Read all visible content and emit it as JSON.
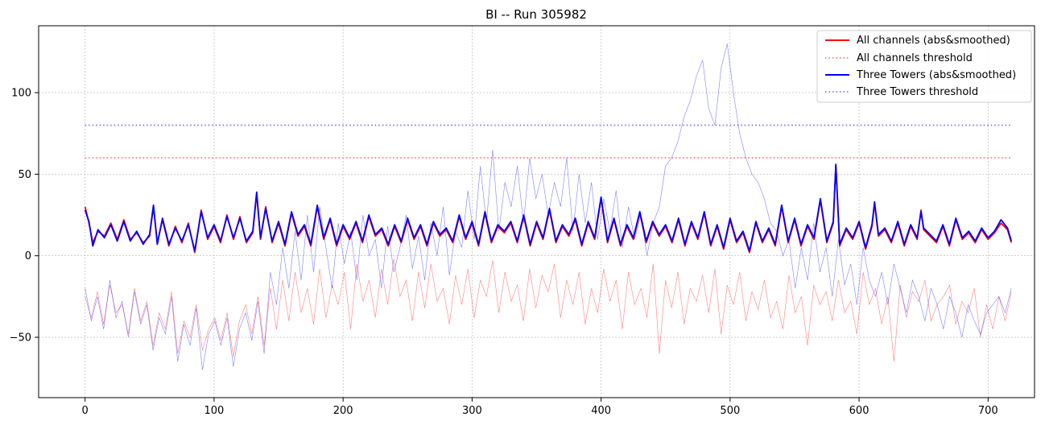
{
  "chart_data": {
    "type": "line",
    "title": "BI -- Run 305982",
    "xlabel": "",
    "ylabel": "",
    "xlim": [
      -36,
      736
    ],
    "ylim": [
      -87,
      141
    ],
    "xticks": [
      0,
      100,
      200,
      300,
      400,
      500,
      600,
      700
    ],
    "yticks": [
      -50,
      0,
      50,
      100
    ],
    "grid": true,
    "legend_position": "top-right",
    "legend": [
      {
        "label": "All channels (abs&smoothed)",
        "color": "#ff0000",
        "style": "solid"
      },
      {
        "label": "All channels threshold",
        "color": "#ff6666",
        "style": "dotted"
      },
      {
        "label": "Three Towers (abs&smoothed)",
        "color": "#0000ff",
        "style": "solid"
      },
      {
        "label": "Three Towers threshold",
        "color": "#6666ff",
        "style": "dotted"
      }
    ],
    "series": [
      {
        "name": "All channels (abs&smoothed)",
        "color": "#ff0000",
        "x": [
          0,
          3,
          6,
          10,
          15,
          20,
          25,
          30,
          35,
          40,
          45,
          50,
          53,
          56,
          60,
          65,
          70,
          75,
          80,
          85,
          90,
          95,
          100,
          105,
          110,
          115,
          120,
          125,
          130,
          133,
          136,
          140,
          145,
          150,
          155,
          160,
          165,
          170,
          175,
          180,
          185,
          190,
          195,
          200,
          205,
          210,
          215,
          220,
          225,
          230,
          235,
          240,
          245,
          250,
          255,
          260,
          265,
          270,
          275,
          280,
          285,
          290,
          295,
          300,
          305,
          310,
          315,
          320,
          325,
          330,
          335,
          340,
          345,
          350,
          355,
          360,
          365,
          370,
          375,
          380,
          385,
          390,
          395,
          400,
          405,
          410,
          415,
          420,
          425,
          430,
          435,
          440,
          445,
          450,
          455,
          460,
          465,
          470,
          475,
          480,
          485,
          490,
          495,
          500,
          505,
          510,
          515,
          520,
          525,
          530,
          535,
          540,
          545,
          550,
          555,
          560,
          565,
          570,
          575,
          580,
          582,
          585,
          590,
          595,
          600,
          605,
          610,
          612,
          615,
          620,
          625,
          630,
          635,
          640,
          645,
          648,
          650,
          655,
          660,
          665,
          670,
          675,
          680,
          685,
          690,
          695,
          700,
          705,
          710,
          715,
          718
        ],
        "values": [
          30,
          20,
          8,
          15,
          12,
          20,
          10,
          22,
          10,
          14,
          8,
          12,
          30,
          8,
          22,
          6,
          18,
          8,
          20,
          2,
          28,
          10,
          18,
          8,
          25,
          10,
          24,
          8,
          14,
          38,
          10,
          30,
          8,
          20,
          6,
          26,
          12,
          18,
          6,
          30,
          10,
          22,
          6,
          18,
          10,
          20,
          8,
          24,
          12,
          16,
          6,
          18,
          8,
          22,
          10,
          18,
          6,
          20,
          12,
          16,
          8,
          24,
          10,
          20,
          6,
          26,
          8,
          18,
          14,
          20,
          8,
          24,
          6,
          20,
          10,
          28,
          8,
          18,
          12,
          22,
          6,
          20,
          10,
          35,
          8,
          22,
          6,
          18,
          10,
          26,
          8,
          20,
          12,
          18,
          8,
          22,
          6,
          20,
          10,
          26,
          6,
          18,
          4,
          22,
          8,
          14,
          2,
          20,
          8,
          16,
          6,
          30,
          8,
          22,
          6,
          18,
          10,
          34,
          8,
          20,
          55,
          6,
          16,
          10,
          20,
          4,
          18,
          32,
          12,
          16,
          8,
          20,
          6,
          18,
          10,
          28,
          16,
          12,
          8,
          18,
          6,
          22,
          10,
          14,
          8,
          16,
          10,
          14,
          20,
          16,
          8
        ]
      },
      {
        "name": "All channels threshold",
        "color": "#ff6666",
        "x": [
          0,
          718
        ],
        "values": [
          60,
          60
        ]
      },
      {
        "name": "Three Towers (abs&smoothed)",
        "color": "#0000ff",
        "x": [
          0,
          3,
          6,
          10,
          15,
          20,
          25,
          30,
          35,
          40,
          45,
          50,
          53,
          56,
          60,
          65,
          70,
          75,
          80,
          85,
          90,
          95,
          100,
          105,
          110,
          115,
          120,
          125,
          130,
          133,
          136,
          140,
          145,
          150,
          155,
          160,
          165,
          170,
          175,
          180,
          185,
          190,
          195,
          200,
          205,
          210,
          215,
          220,
          225,
          230,
          235,
          240,
          245,
          250,
          255,
          260,
          265,
          270,
          275,
          280,
          285,
          290,
          295,
          300,
          305,
          310,
          315,
          320,
          325,
          330,
          335,
          340,
          345,
          350,
          355,
          360,
          365,
          370,
          375,
          380,
          385,
          390,
          395,
          400,
          405,
          410,
          415,
          420,
          425,
          430,
          435,
          440,
          445,
          450,
          455,
          460,
          465,
          470,
          475,
          480,
          485,
          490,
          495,
          500,
          505,
          510,
          515,
          520,
          525,
          530,
          535,
          540,
          545,
          550,
          555,
          560,
          565,
          570,
          575,
          580,
          582,
          585,
          590,
          595,
          600,
          605,
          610,
          612,
          615,
          620,
          625,
          630,
          635,
          640,
          645,
          648,
          650,
          655,
          660,
          665,
          670,
          675,
          680,
          685,
          690,
          695,
          700,
          705,
          710,
          715,
          718
        ],
        "values": [
          28,
          21,
          6,
          16,
          11,
          19,
          9,
          21,
          9,
          15,
          7,
          13,
          31,
          7,
          23,
          7,
          17,
          9,
          19,
          3,
          27,
          11,
          19,
          9,
          24,
          11,
          23,
          9,
          15,
          39,
          11,
          29,
          9,
          21,
          7,
          27,
          13,
          19,
          7,
          31,
          11,
          23,
          7,
          19,
          11,
          21,
          9,
          25,
          13,
          17,
          7,
          19,
          9,
          23,
          11,
          19,
          7,
          21,
          13,
          17,
          9,
          25,
          11,
          21,
          7,
          27,
          9,
          19,
          15,
          21,
          9,
          25,
          7,
          21,
          11,
          29,
          9,
          19,
          13,
          23,
          7,
          21,
          11,
          36,
          9,
          23,
          7,
          19,
          11,
          27,
          9,
          21,
          13,
          19,
          9,
          23,
          7,
          21,
          11,
          27,
          7,
          19,
          5,
          23,
          9,
          15,
          3,
          21,
          9,
          17,
          7,
          31,
          9,
          23,
          7,
          19,
          11,
          35,
          9,
          21,
          56,
          7,
          17,
          11,
          21,
          5,
          19,
          33,
          13,
          17,
          9,
          21,
          7,
          19,
          11,
          27,
          17,
          13,
          9,
          19,
          7,
          23,
          11,
          15,
          9,
          17,
          11,
          15,
          22,
          17,
          9
        ]
      },
      {
        "name": "Three Towers threshold",
        "color": "#6666ff",
        "x": [
          0,
          718
        ],
        "values": [
          80,
          80
        ]
      }
    ],
    "background_series": [
      {
        "name": "All channels (raw)",
        "color": "#ff0000",
        "values": [
          -25,
          -38,
          -22,
          -42,
          -18,
          -35,
          -30,
          -48,
          -20,
          -40,
          -28,
          -55,
          -35,
          -45,
          -22,
          -60,
          -40,
          -50,
          -30,
          -58,
          -45,
          -38,
          -52,
          -35,
          -62,
          -40,
          -30,
          -48,
          -25,
          -55,
          -20,
          -45,
          -15,
          -40,
          -10,
          -35,
          -20,
          -42,
          -8,
          -38,
          -18,
          -30,
          -10,
          -45,
          -5,
          -28,
          -15,
          -38,
          -8,
          -30,
          -2,
          -25,
          -15,
          -40,
          -10,
          -32,
          -5,
          -28,
          -20,
          -42,
          -12,
          -30,
          -8,
          -38,
          -15,
          -25,
          -3,
          -35,
          -10,
          -28,
          -18,
          -40,
          -8,
          -32,
          -12,
          -22,
          -5,
          -38,
          -15,
          -30,
          -10,
          -42,
          -20,
          -35,
          -8,
          -28,
          -15,
          -45,
          -10,
          -30,
          -20,
          -38,
          -5,
          -60,
          -15,
          -32,
          -10,
          -42,
          -20,
          -28,
          -12,
          -35,
          -8,
          -48,
          -18,
          -30,
          -10,
          -40,
          -22,
          -33,
          -15,
          -38,
          -28,
          -45,
          -12,
          -35,
          -25,
          -55,
          -18,
          -30,
          -22,
          -40,
          -15,
          -35,
          -28,
          -48,
          -10,
          -30,
          -20,
          -42,
          -25,
          -65,
          -18,
          -38,
          -22,
          -28,
          -15,
          -40,
          -30,
          -25,
          -18,
          -42,
          -28,
          -35,
          -20,
          -50,
          -30,
          -45,
          -25,
          -40,
          -22
        ]
      },
      {
        "name": "Three Towers (raw)",
        "color": "#0000ff",
        "values": [
          -20,
          -40,
          -25,
          -45,
          -15,
          -38,
          -28,
          -50,
          -22,
          -42,
          -30,
          -58,
          -38,
          -48,
          -25,
          -65,
          -42,
          -55,
          -32,
          -70,
          -48,
          -40,
          -55,
          -38,
          -68,
          -45,
          -35,
          -52,
          -28,
          -60,
          -10,
          -30,
          5,
          -20,
          15,
          -15,
          25,
          -10,
          30,
          5,
          -20,
          20,
          -5,
          15,
          -15,
          25,
          0,
          10,
          -20,
          18,
          -10,
          5,
          25,
          -8,
          12,
          -15,
          20,
          0,
          30,
          -12,
          15,
          5,
          40,
          10,
          55,
          20,
          65,
          15,
          45,
          30,
          55,
          20,
          60,
          35,
          50,
          25,
          45,
          30,
          60,
          15,
          50,
          20,
          45,
          10,
          35,
          15,
          40,
          5,
          30,
          10,
          25,
          0,
          20,
          30,
          55,
          60,
          70,
          85,
          95,
          110,
          120,
          90,
          80,
          115,
          130,
          100,
          75,
          60,
          50,
          45,
          35,
          20,
          15,
          0,
          10,
          -20,
          5,
          -15,
          20,
          -10,
          5,
          -25,
          10,
          -18,
          -5,
          -30,
          5,
          -15,
          -25,
          -10,
          -30,
          -5,
          -20,
          -35,
          -15,
          -25,
          -40,
          -20,
          -30,
          -45,
          -25,
          -35,
          -50,
          -30,
          -40,
          -48,
          -35,
          -30,
          -25,
          -35,
          -20
        ]
      }
    ]
  }
}
